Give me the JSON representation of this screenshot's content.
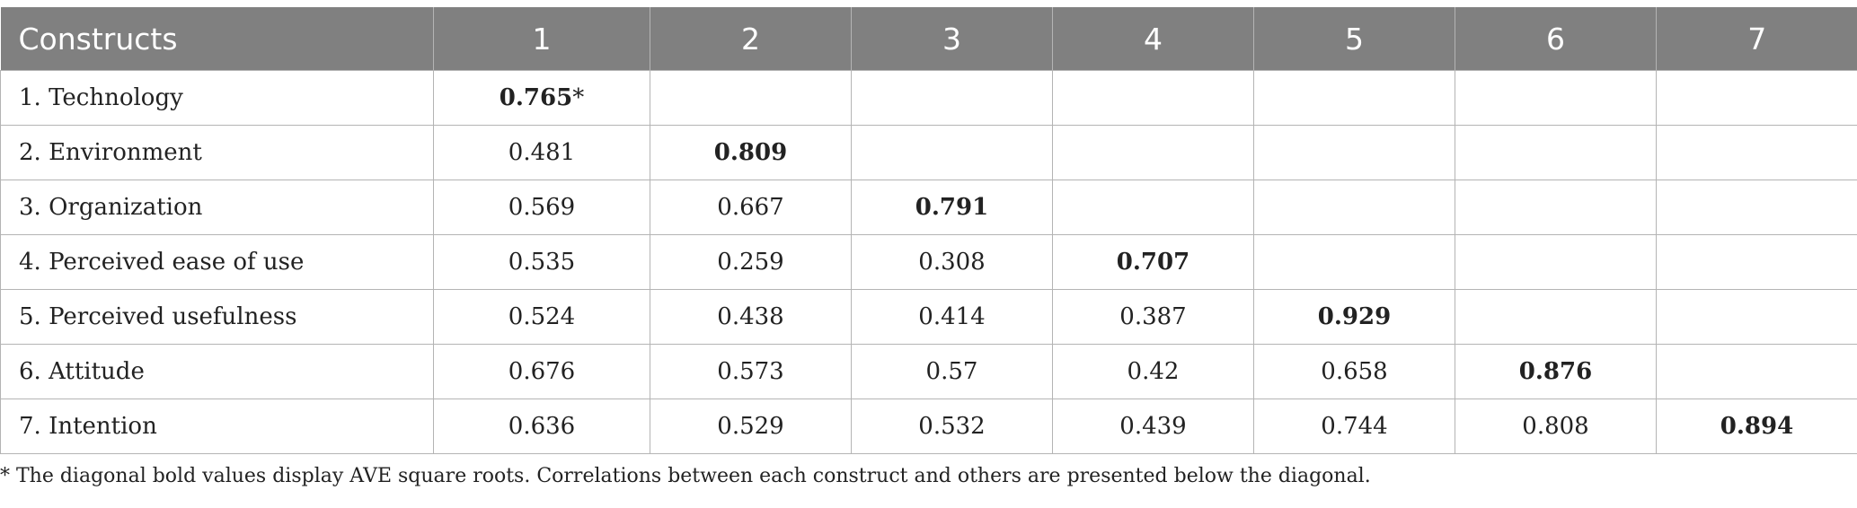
{
  "table": {
    "headers": [
      "Constructs",
      "1",
      "2",
      "3",
      "4",
      "5",
      "6",
      "7"
    ],
    "rows": [
      {
        "label": "1. Technology",
        "cells": [
          "0.765",
          "",
          "",
          "",
          "",
          "",
          ""
        ]
      },
      {
        "label": "2. Environment",
        "cells": [
          "0.481",
          "0.809",
          "",
          "",
          "",
          "",
          ""
        ]
      },
      {
        "label": "3. Organization",
        "cells": [
          "0.569",
          "0.667",
          "0.791",
          "",
          "",
          "",
          ""
        ]
      },
      {
        "label": "4. Perceived ease of use",
        "cells": [
          "0.535",
          "0.259",
          "0.308",
          "0.707",
          "",
          "",
          ""
        ]
      },
      {
        "label": "5. Perceived usefulness",
        "cells": [
          "0.524",
          "0.438",
          "0.414",
          "0.387",
          "0.929",
          "",
          ""
        ]
      },
      {
        "label": "6. Attitude",
        "cells": [
          "0.676",
          "0.573",
          "0.57",
          "0.42",
          "0.658",
          "0.876",
          ""
        ]
      },
      {
        "label": "7. Intention",
        "cells": [
          "0.636",
          "0.529",
          "0.532",
          "0.439",
          "0.744",
          "0.808",
          "0.894"
        ]
      }
    ],
    "diagonal_marker": "*"
  },
  "footnote": "* The diagonal bold values display AVE square roots. Correlations between each construct and others are presented below the diagonal."
}
